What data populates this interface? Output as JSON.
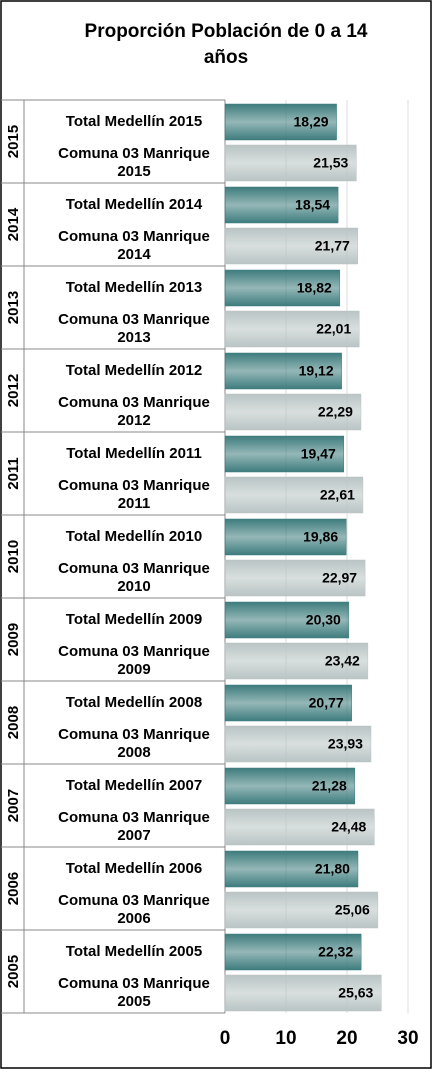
{
  "chart_data": {
    "type": "bar",
    "orientation": "horizontal",
    "title": "Proporción Población de 0 a 14 años",
    "groups": [
      "2015",
      "2014",
      "2013",
      "2012",
      "2011",
      "2010",
      "2009",
      "2008",
      "2007",
      "2006",
      "2005"
    ],
    "categories": [
      "Total Medellín 2015",
      "Comuna 03 Manrique 2015",
      "Total Medellín 2014",
      "Comuna 03 Manrique 2014",
      "Total Medellín 2013",
      "Comuna 03 Manrique 2013",
      "Total Medellín 2012",
      "Comuna 03 Manrique 2012",
      "Total Medellín 2011",
      "Comuna 03 Manrique 2011",
      "Total Medellín 2010",
      "Comuna 03 Manrique 2010",
      "Total Medellín 2009",
      "Comuna 03 Manrique 2009",
      "Total Medellín 2008",
      "Comuna 03 Manrique 2008",
      "Total Medellín 2007",
      "Comuna 03 Manrique 2007",
      "Total Medellín 2006",
      "Comuna 03 Manrique 2006",
      "Total Medellín 2005",
      "Comuna 03 Manrique 2005"
    ],
    "values": [
      18.29,
      21.53,
      18.54,
      21.77,
      18.82,
      22.01,
      19.12,
      22.29,
      19.47,
      22.61,
      19.86,
      22.97,
      20.3,
      23.42,
      20.77,
      23.93,
      21.28,
      24.48,
      21.8,
      25.06,
      22.32,
      25.63
    ],
    "value_labels": [
      "18,29",
      "21,53",
      "18,54",
      "21,77",
      "18,82",
      "22,01",
      "19,12",
      "22,29",
      "19,47",
      "22,61",
      "19,86",
      "22,97",
      "20,30",
      "23,42",
      "20,77",
      "23,93",
      "21,28",
      "24,48",
      "21,80",
      "25,06",
      "22,32",
      "25,63"
    ],
    "bar_colors": [
      "#3e7c7d",
      "#b9c4c4"
    ],
    "xlim": [
      0,
      30
    ],
    "xticks": [
      0,
      10,
      20,
      30
    ],
    "grid": true
  }
}
